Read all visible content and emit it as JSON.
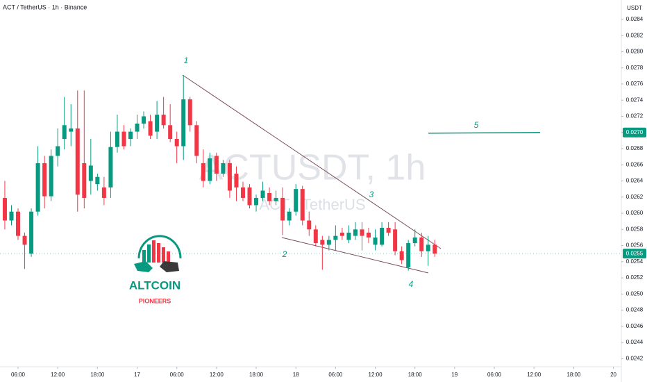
{
  "chart_data": {
    "type": "candlestick",
    "title": "ACT / TetherUS · 1h · Binance",
    "watermark": "ACTUSDT, 1h",
    "watermark_subtitle": "ACT / TetherUS",
    "y_axis_unit": "USDT",
    "logo_title": "ALTCOIN",
    "logo_subtitle": "PIONEERS",
    "up_color": "#089981",
    "down_color": "#f23645",
    "grid": false,
    "x": [
      0,
      1,
      2,
      3,
      4,
      5,
      6,
      7,
      8,
      9,
      10,
      11,
      12,
      13,
      14,
      15,
      16,
      17,
      18,
      19,
      20,
      21,
      22,
      23,
      24,
      25,
      26,
      27,
      28,
      29,
      30,
      31,
      32,
      33,
      34,
      35,
      36,
      37,
      38,
      39,
      40,
      41,
      42,
      43,
      44,
      45,
      46,
      47,
      48,
      49,
      50,
      51,
      52,
      53,
      54,
      55,
      56,
      57,
      58,
      59,
      60,
      61,
      62,
      63,
      64,
      65
    ],
    "open": [
      0.02619,
      0.02591,
      0.02602,
      0.02572,
      0.0255,
      0.02602,
      0.02662,
      0.02621,
      0.02671,
      0.02692,
      0.02701,
      0.02705,
      0.02662,
      0.0264,
      0.02636,
      0.02632,
      0.02632,
      0.02682,
      0.02701,
      0.02692,
      0.02701,
      0.02711,
      0.02714,
      0.02701,
      0.02722,
      0.02709,
      0.02692,
      0.02683,
      0.02741,
      0.02709,
      0.02662,
      0.0264,
      0.02671,
      0.02649,
      0.02662,
      0.02649,
      0.02632,
      0.02632,
      0.0261,
      0.02619,
      0.02625,
      0.02615,
      0.02619,
      0.02591,
      0.02602,
      0.0263,
      0.02591,
      0.0258,
      0.02567,
      0.02561,
      0.02567,
      0.02576,
      0.02567,
      0.02572,
      0.0258,
      0.02576,
      0.02561,
      0.02561,
      0.02582,
      0.0258,
      0.02553,
      0.02533,
      0.02563,
      0.0257,
      0.02553,
      0.02561
    ],
    "high": [
      0.0264,
      0.0261,
      0.02606,
      0.02576,
      0.02606,
      0.02683,
      0.02671,
      0.02679,
      0.02705,
      0.02744,
      0.02735,
      0.02752,
      0.02752,
      0.02692,
      0.02649,
      0.02645,
      0.02701,
      0.02722,
      0.02709,
      0.02705,
      0.02722,
      0.02726,
      0.02722,
      0.02739,
      0.02744,
      0.02735,
      0.02701,
      0.02771,
      0.02744,
      0.02714,
      0.02679,
      0.02675,
      0.02675,
      0.02666,
      0.02666,
      0.02658,
      0.02639,
      0.02636,
      0.02623,
      0.02639,
      0.02632,
      0.02628,
      0.02632,
      0.02606,
      0.02636,
      0.02634,
      0.02602,
      0.02585,
      0.02572,
      0.02572,
      0.02585,
      0.02582,
      0.02585,
      0.02589,
      0.02589,
      0.02582,
      0.0258,
      0.02589,
      0.02589,
      0.02589,
      0.02559,
      0.02567,
      0.0258,
      0.02576,
      0.02572,
      0.02567
    ],
    "low": [
      0.0258,
      0.02585,
      0.02567,
      0.02531,
      0.02546,
      0.02597,
      0.02606,
      0.02615,
      0.02658,
      0.02679,
      0.02683,
      0.02602,
      0.02606,
      0.02623,
      0.02628,
      0.0261,
      0.02619,
      0.02675,
      0.02679,
      0.02683,
      0.02692,
      0.02705,
      0.02692,
      0.02692,
      0.02705,
      0.02688,
      0.02662,
      0.02666,
      0.02701,
      0.02662,
      0.02632,
      0.02636,
      0.0264,
      0.02645,
      0.02619,
      0.02615,
      0.02615,
      0.02606,
      0.02602,
      0.02615,
      0.0261,
      0.0261,
      0.02573,
      0.02585,
      0.02597,
      0.02585,
      0.02572,
      0.02559,
      0.0253,
      0.02554,
      0.02554,
      0.02567,
      0.02563,
      0.02567,
      0.02554,
      0.02563,
      0.02554,
      0.02559,
      0.02572,
      0.02548,
      0.02537,
      0.02529,
      0.02559,
      0.02546,
      0.02535,
      0.02546
    ],
    "close": [
      0.02591,
      0.02602,
      0.02572,
      0.02561,
      0.02602,
      0.02662,
      0.02621,
      0.02671,
      0.02683,
      0.02709,
      0.02705,
      0.02623,
      0.02619,
      0.02659,
      0.02645,
      0.02619,
      0.02682,
      0.02701,
      0.02683,
      0.02701,
      0.02711,
      0.0272,
      0.02696,
      0.02722,
      0.02709,
      0.02692,
      0.02683,
      0.02741,
      0.02709,
      0.02671,
      0.0264,
      0.02668,
      0.02649,
      0.02662,
      0.02628,
      0.02632,
      0.02619,
      0.0261,
      0.02619,
      0.02628,
      0.02615,
      0.02619,
      0.02591,
      0.02602,
      0.0263,
      0.02591,
      0.0258,
      0.02563,
      0.02561,
      0.02567,
      0.02572,
      0.02572,
      0.02576,
      0.0258,
      0.02572,
      0.0257,
      0.0257,
      0.02582,
      0.02576,
      0.02553,
      0.02542,
      0.02563,
      0.0257,
      0.02553,
      0.02561,
      0.0255
    ],
    "xlim": [
      -0.73,
      93.2
    ],
    "xticks": [
      {
        "value": 2,
        "label": "06:00"
      },
      {
        "value": 8,
        "label": "12:00"
      },
      {
        "value": 14,
        "label": "18:00"
      },
      {
        "value": 20,
        "label": "17"
      },
      {
        "value": 26,
        "label": "06:00"
      },
      {
        "value": 32,
        "label": "12:00"
      },
      {
        "value": 38,
        "label": "18:00"
      },
      {
        "value": 44,
        "label": "18"
      },
      {
        "value": 50,
        "label": "06:00"
      },
      {
        "value": 56,
        "label": "12:00"
      },
      {
        "value": 62,
        "label": "18:00"
      },
      {
        "value": 68,
        "label": "19"
      },
      {
        "value": 74,
        "label": "06:00"
      },
      {
        "value": 80,
        "label": "12:00"
      },
      {
        "value": 86,
        "label": "18:00"
      },
      {
        "value": 92,
        "label": "20"
      }
    ],
    "ylim": [
      0.0241,
      0.02864
    ],
    "yticks": [
      0.0242,
      0.0244,
      0.0246,
      0.0248,
      {
        "value": 0.025,
        "label": "0.0250"
      },
      0.0252,
      0.0254,
      0.0256,
      0.0258,
      {
        "value": 0.026,
        "label": "0.0260"
      },
      0.0262,
      0.0264,
      0.0266,
      0.0268,
      {
        "value": 0.027,
        "label": "0.0270"
      },
      0.0272,
      0.0274,
      0.0276,
      0.0278,
      {
        "value": 0.028,
        "label": "0.0280"
      },
      0.0282,
      0.0284
    ],
    "last_price": 0.0255,
    "level_line": {
      "value": 0.027,
      "label": "0.0270"
    },
    "annotations": [
      "1",
      "2",
      "3",
      "4",
      "5"
    ]
  }
}
